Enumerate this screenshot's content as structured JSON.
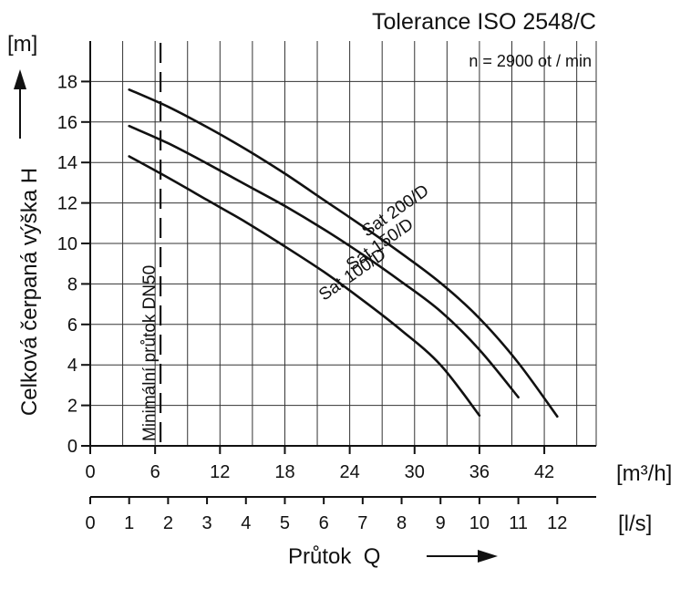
{
  "chart_data": {
    "type": "line",
    "title": "Tolerance ISO 2548/C",
    "subtitle": "n = 2900  ot / min",
    "ylabel": "Celková čerpaná výška H",
    "yunit": "[m]",
    "xlabel": "Průtok  Q",
    "xunit_primary": "[m³/h]",
    "xunit_secondary": "[l/s]",
    "xlim": [
      0,
      46.8
    ],
    "ylim": [
      0,
      20
    ],
    "grid": true,
    "x_ticks_primary": [
      "0",
      "6",
      "12",
      "18",
      "24",
      "30",
      "36",
      "42"
    ],
    "x_ticks_secondary": [
      "0",
      "1",
      "2",
      "3",
      "4",
      "5",
      "6",
      "7",
      "8",
      "9",
      "10",
      "11",
      "12"
    ],
    "y_ticks": [
      "0",
      "2",
      "4",
      "6",
      "8",
      "10",
      "12",
      "14",
      "16",
      "18"
    ],
    "series": [
      {
        "name": "Sat 200/D",
        "x": [
          3.6,
          7.2,
          10.8,
          14.4,
          18,
          21.6,
          25.2,
          28.8,
          32.4,
          36,
          39.6,
          43.2
        ],
        "y": [
          17.6,
          16.75,
          15.75,
          14.65,
          13.45,
          12.15,
          10.85,
          9.5,
          8.05,
          6.3,
          4.1,
          1.45
        ]
      },
      {
        "name": "Sat 150/D",
        "x": [
          3.6,
          7.2,
          10.8,
          14.4,
          18,
          21.6,
          25.2,
          28.8,
          32.4,
          36,
          39.6
        ],
        "y": [
          15.8,
          14.95,
          13.95,
          12.9,
          11.85,
          10.7,
          9.45,
          8.1,
          6.65,
          4.75,
          2.4
        ]
      },
      {
        "name": "Sat 100/D",
        "x": [
          3.6,
          7.2,
          10.8,
          14.4,
          18,
          21.6,
          25.2,
          28.8,
          32.4,
          36
        ],
        "y": [
          14.3,
          13.25,
          12.15,
          11.05,
          9.85,
          8.6,
          7.2,
          5.7,
          4.0,
          1.5
        ]
      }
    ],
    "annotations": [
      {
        "text": "Minimální průtok DN50",
        "x": 6.5
      }
    ]
  }
}
